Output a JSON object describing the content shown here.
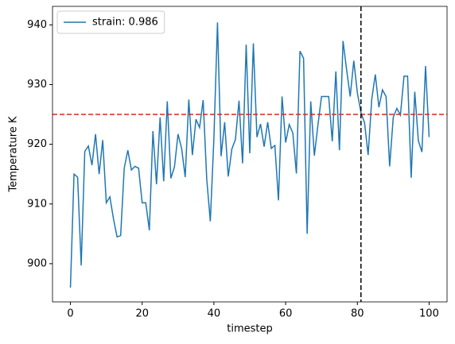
{
  "chart_data": {
    "type": "line",
    "xlabel": "timestep",
    "ylabel": "Temperature K",
    "x": [
      0,
      1,
      2,
      3,
      4,
      5,
      6,
      7,
      8,
      9,
      10,
      11,
      12,
      13,
      14,
      15,
      16,
      17,
      18,
      19,
      20,
      21,
      22,
      23,
      24,
      25,
      26,
      27,
      28,
      29,
      30,
      31,
      32,
      33,
      34,
      35,
      36,
      37,
      38,
      39,
      40,
      41,
      42,
      43,
      44,
      45,
      46,
      47,
      48,
      49,
      50,
      51,
      52,
      53,
      54,
      55,
      56,
      57,
      58,
      59,
      60,
      61,
      62,
      63,
      64,
      65,
      66,
      67,
      68,
      69,
      70,
      71,
      72,
      73,
      74,
      75,
      76,
      77,
      78,
      79,
      80,
      81,
      82,
      83,
      84,
      85,
      86,
      87,
      88,
      89,
      90,
      91,
      92,
      93,
      94,
      95,
      96,
      97,
      98,
      99,
      100
    ],
    "series": [
      {
        "name": "strain: 0.986",
        "color": "#1f77b4",
        "values": [
          896,
          915,
          914.5,
          899.7,
          918.8,
          919.7,
          916.5,
          921.7,
          915,
          920.7,
          910.2,
          911.2,
          907.5,
          904.5,
          904.7,
          916,
          919,
          915.7,
          916.3,
          916,
          910.2,
          910.2,
          905.6,
          922.2,
          913.3,
          924.5,
          913.8,
          927.2,
          914.3,
          916.2,
          921.7,
          919.3,
          914.5,
          927.5,
          918.2,
          924.2,
          922.8,
          927.4,
          914.2,
          907.1,
          921,
          940.4,
          918,
          923.7,
          914.6,
          919.2,
          920.8,
          927.3,
          916.8,
          936.7,
          918.5,
          936.9,
          921.2,
          923.4,
          919.6,
          923.7,
          919.3,
          919.8,
          910.6,
          928,
          920.3,
          923.3,
          921.9,
          915.1,
          935.6,
          934.4,
          905,
          927.2,
          918.1,
          923.2,
          928,
          928,
          928,
          920.5,
          932.2,
          919,
          937.3,
          932.5,
          928,
          934,
          928.6,
          925.3,
          923.6,
          918.2,
          927.5,
          931.7,
          926.2,
          929.1,
          928,
          916.3,
          924.5,
          926,
          924.9,
          931.4,
          931.4,
          914.4,
          928.8,
          920.6,
          918.7,
          933.1,
          921.2
        ]
      }
    ],
    "hline": 925,
    "hline_color": "#d62728",
    "vline": 81,
    "vline_color": "#000000",
    "xlim": [
      -5,
      105
    ],
    "xticks": [
      0,
      20,
      40,
      60,
      80,
      100
    ],
    "ylim": [
      893.6,
      943.1
    ],
    "yticks": [
      900,
      910,
      920,
      930,
      940
    ],
    "grid": false,
    "legend": "upper left"
  }
}
